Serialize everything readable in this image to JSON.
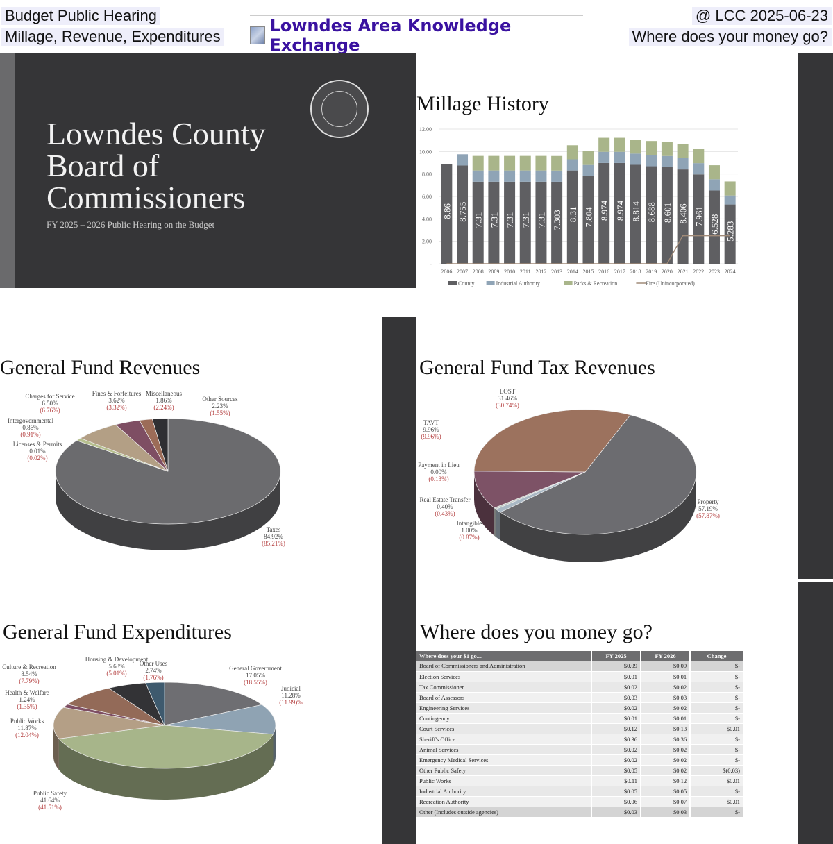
{
  "header": {
    "left_line1": "Budget Public Hearing",
    "left_line2": "Millage, Revenue, Expenditures",
    "brand": "Lowndes Area Knowledge Exchange",
    "right_line1": "@ LCC 2025-06-23",
    "right_line2": "Where does your money go?"
  },
  "title_slide": {
    "title_lines": [
      "Lowndes County",
      "Board of",
      "Commissioners"
    ],
    "subtitle": "FY 2025 – 2026 Public Hearing on the Budget",
    "seal_text": [
      "LOWNDES COUNTY, GEORGIA",
      "1825",
      "BOARD OF COMMISSIONERS"
    ]
  },
  "colors": {
    "slide_dark": "#353537",
    "prior_year_red": "#b23a3a"
  },
  "chart_data": [
    {
      "type": "bar",
      "stacked": true,
      "title": "Millage History",
      "categories": [
        "2006",
        "2007",
        "2008",
        "2009",
        "2010",
        "2011",
        "2012",
        "2013",
        "2014",
        "2015",
        "2016",
        "2017",
        "2018",
        "2019",
        "2020",
        "2021",
        "2022",
        "2023",
        "2024"
      ],
      "ylim": [
        0,
        12
      ],
      "yticks": [
        "-",
        "2.00",
        "4.00",
        "6.00",
        "8.00",
        "10.00",
        "12.00"
      ],
      "grid": true,
      "legend": "bottom",
      "series": [
        {
          "name": "County",
          "color": "#5f5f62",
          "values": [
            8.86,
            8.755,
            7.31,
            7.31,
            7.31,
            7.31,
            7.31,
            7.303,
            8.31,
            7.804,
            8.974,
            8.974,
            8.814,
            8.688,
            8.601,
            8.406,
            7.961,
            6.528,
            5.283
          ],
          "labels": [
            "8.86",
            "8.755",
            "7.31",
            "7.31",
            "7.31",
            "7.31",
            "7.31",
            "7.303",
            "8.31",
            "7.804",
            "8.974",
            "8.974",
            "8.814",
            "8.688",
            "8.601",
            "8.406",
            "7.961",
            "6.528",
            "5.283"
          ]
        },
        {
          "name": "Industrial Authority",
          "color": "#8fa4b6",
          "values": [
            0,
            1.0,
            1.0,
            1.0,
            1.0,
            1.0,
            1.0,
            1.0,
            1.0,
            1.0,
            1.0,
            1.0,
            1.0,
            1.0,
            1.0,
            1.0,
            1.0,
            1.0,
            0.8
          ]
        },
        {
          "name": "Parks & Recreation",
          "color": "#a9b58a",
          "values": [
            0,
            0,
            1.3,
            1.3,
            1.3,
            1.3,
            1.3,
            1.3,
            1.25,
            1.25,
            1.25,
            1.25,
            1.25,
            1.25,
            1.25,
            1.25,
            1.25,
            1.25,
            1.25
          ]
        },
        {
          "name": "Fire (Unincorporated)",
          "type": "line",
          "color": "#a08a78",
          "values": [
            0,
            0,
            0,
            0,
            0,
            0,
            0,
            0,
            0,
            0,
            0,
            0,
            0,
            0,
            0,
            2.5,
            2.5,
            2.5,
            2.5
          ]
        }
      ]
    },
    {
      "type": "pie",
      "title": "General Fund Revenues",
      "slices": [
        {
          "label": "Taxes",
          "value": 84.92,
          "text": "84.92%",
          "prior": "(85.21%)",
          "color": "#6b6b6e"
        },
        {
          "label": "Licenses & Permits",
          "value": 0.01,
          "text": "0.01%",
          "prior": "(0.02%)",
          "color": "#c9c9b0"
        },
        {
          "label": "Intergovernmental",
          "value": 0.86,
          "text": "0.86%",
          "prior": "(0.91%)",
          "color": "#b7c08f"
        },
        {
          "label": "Charges for Service",
          "value": 6.5,
          "text": "6.50%",
          "prior": "(6.76%)",
          "color": "#b39f85"
        },
        {
          "label": "Fines & Forfeitures",
          "value": 3.62,
          "text": "3.62%",
          "prior": "(3.32%)",
          "color": "#7e4e63"
        },
        {
          "label": "Miscellaneous",
          "value": 1.86,
          "text": "1.86%",
          "prior": "(2.24%)",
          "color": "#9c6c58"
        },
        {
          "label": "Other Sources",
          "value": 2.23,
          "text": "2.23%",
          "prior": "(1.55%)",
          "color": "#2f2f33"
        }
      ]
    },
    {
      "type": "pie",
      "title": "General Fund Tax Revenues",
      "slices": [
        {
          "label": "Property",
          "value": 57.19,
          "text": "57.19%",
          "prior": "(57.87%)",
          "color": "#6c6c70"
        },
        {
          "label": "Intangible",
          "value": 1.0,
          "text": "1.00%",
          "prior": "(0.87%)",
          "color": "#a9b8c4"
        },
        {
          "label": "Real Estate Transfer",
          "value": 0.4,
          "text": "0.40%",
          "prior": "(0.43%)",
          "color": "#c4cbc6"
        },
        {
          "label": "Payment in Lieu",
          "value": 0.0,
          "text": "0.00%",
          "prior": "(0.13%)",
          "color": "#b7c08f"
        },
        {
          "label": "TAVT",
          "value": 9.96,
          "text": "9.96%",
          "prior": "(9.96%)",
          "color": "#7d5266"
        },
        {
          "label": "LOST",
          "value": 31.46,
          "text": "31.46%",
          "prior": "(30.74%)",
          "color": "#9c725e"
        }
      ]
    },
    {
      "type": "pie",
      "title": "General Fund Expenditures",
      "slices": [
        {
          "label": "General Government",
          "value": 17.05,
          "text": "17.05%",
          "prior": "(18.55%)",
          "color": "#6e6e72"
        },
        {
          "label": "Judicial",
          "value": 11.28,
          "text": "11.28%",
          "prior": "(11.99)%",
          "color": "#8fa3b3"
        },
        {
          "label": "Public Safety",
          "value": 41.64,
          "text": "41.64%",
          "prior": "(41.51%)",
          "color": "#a7b58a"
        },
        {
          "label": "Public Works",
          "value": 11.87,
          "text": "11.87%",
          "prior": "(12.04%)",
          "color": "#b49f86"
        },
        {
          "label": "Health & Welfare",
          "value": 1.24,
          "text": "1.24%",
          "prior": "(1.35%)",
          "color": "#7e4e63"
        },
        {
          "label": "Culture & Recreation",
          "value": 8.54,
          "text": "8.54%",
          "prior": "(7.79%)",
          "color": "#936a58"
        },
        {
          "label": "Housing & Development",
          "value": 5.63,
          "text": "5.63%",
          "prior": "(5.01%)",
          "color": "#333336"
        },
        {
          "label": "Other Uses",
          "value": 2.74,
          "text": "2.74%",
          "prior": "(1.76%)",
          "color": "#3e5a6e"
        }
      ]
    },
    {
      "type": "table",
      "title": "Where does you money go?",
      "columns": [
        "Where does your $1 go....",
        "FY 2025",
        "FY 2026",
        "Change"
      ],
      "rows": [
        [
          "Board of Commissioners and Administration",
          "$0.09",
          "$0.09",
          "$-"
        ],
        [
          "Election Services",
          "$0.01",
          "$0.01",
          "$-"
        ],
        [
          "Tax Commissioner",
          "$0.02",
          "$0.02",
          "$-"
        ],
        [
          "Board of Assessors",
          "$0.03",
          "$0.03",
          "$-"
        ],
        [
          "Engineering Services",
          "$0.02",
          "$0.02",
          "$-"
        ],
        [
          "Contingency",
          "$0.01",
          "$0.01",
          "$-"
        ],
        [
          "Court Services",
          "$0.12",
          "$0.13",
          "$0.01"
        ],
        [
          "Sheriff's Office",
          "$0.36",
          "$0.36",
          "$-"
        ],
        [
          "Animal Services",
          "$0.02",
          "$0.02",
          "$-"
        ],
        [
          "Emergency Medical Services",
          "$0.02",
          "$0.02",
          "$-"
        ],
        [
          "Other Public Safety",
          "$0.05",
          "$0.02",
          "$(0.03)"
        ],
        [
          "Public Works",
          "$0.11",
          "$0.12",
          "$0.01"
        ],
        [
          "Industrial Authority",
          "$0.05",
          "$0.05",
          "$-"
        ],
        [
          "Recreation Authority",
          "$0.06",
          "$0.07",
          "$0.01"
        ],
        [
          "Other (Includes outside agencies)",
          "$0.03",
          "$0.03",
          "$-"
        ]
      ]
    }
  ]
}
